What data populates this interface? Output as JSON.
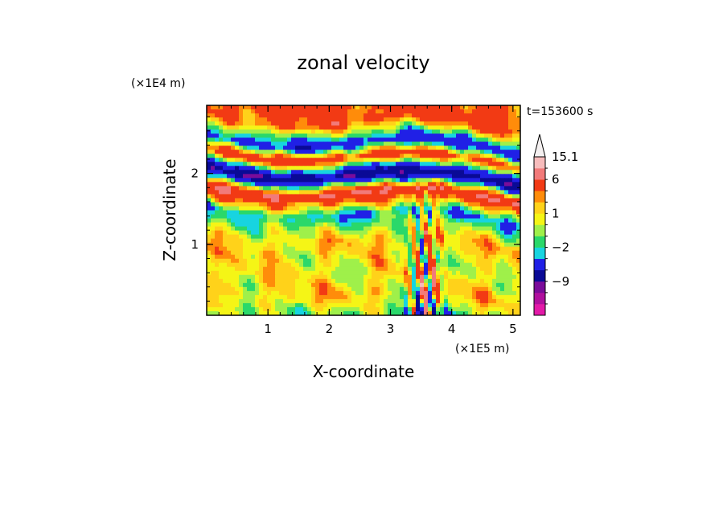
{
  "chart_data": {
    "type": "heatmap",
    "title": "zonal velocity",
    "xlabel": "X-coordinate",
    "ylabel": "Z-coordinate",
    "x_unit": "(×1E5 m)",
    "y_unit": "(×1E4 m)",
    "time_label": "t=153600 s",
    "xlim": [
      0,
      5.12
    ],
    "ylim": [
      0,
      2.96
    ],
    "x_ticks": [
      1,
      2,
      3,
      4,
      5
    ],
    "y_ticks": [
      1,
      2
    ],
    "colorbar": {
      "labels": [
        {
          "value": 15.1,
          "text": "15.1"
        },
        {
          "value": 6,
          "text": "6"
        },
        {
          "value": 1,
          "text": "1"
        },
        {
          "value": -2,
          "text": "−2"
        },
        {
          "value": -9,
          "text": "−9"
        }
      ],
      "levels": [
        -15,
        -12,
        -9,
        -6,
        -3,
        -2,
        -1,
        0,
        1,
        2,
        3,
        6,
        9,
        12,
        15.1
      ],
      "colors": [
        "#e31aa8",
        "#b0109e",
        "#7a0c9a",
        "#0a0a96",
        "#2020e6",
        "#17d4e0",
        "#2ad86a",
        "#9ff04a",
        "#f5f516",
        "#ffd21a",
        "#ff8c0a",
        "#f23a14",
        "#f27a7a",
        "#f7bcbc",
        "#f4f0f0"
      ],
      "extend": "max"
    },
    "field_bands": [
      {
        "z": 2.85,
        "u": 3
      },
      {
        "z": 2.55,
        "u": -4
      },
      {
        "z": 2.35,
        "u": 4
      },
      {
        "z": 2.1,
        "u": -7
      },
      {
        "z": 1.85,
        "u": 5
      },
      {
        "z": 1.55,
        "u": -2
      },
      {
        "z": 1.2,
        "u": 1
      },
      {
        "z": 0.8,
        "u": 0.5
      },
      {
        "z": 0.4,
        "u": 1
      },
      {
        "z": 0.1,
        "u": -1
      }
    ]
  }
}
